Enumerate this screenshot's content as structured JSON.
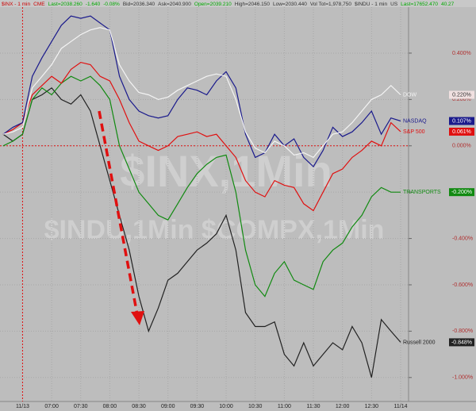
{
  "chart_data": {
    "type": "line",
    "header_items": [
      "$INX - 1 min",
      "CME",
      "Last=2038.260",
      "-1.640",
      "-0.08%",
      "Bid=2036.340",
      "Ask=2040.900",
      "Open=2039.210",
      "High=2046.150",
      "Low=2030.440",
      "Vol Tot=1,978,750",
      "$INDU - 1 min",
      "US",
      "Last=17652.470",
      "40.27"
    ],
    "watermarks": [
      "$INX,1Min",
      "$INDU,1Min  $COMPX,1Min"
    ],
    "categories": [
      null,
      null,
      "11/13",
      null,
      null,
      "07:00",
      null,
      null,
      "07:30",
      null,
      null,
      "08:00",
      null,
      null,
      "08:30",
      null,
      null,
      "09:00",
      null,
      null,
      "09:30",
      null,
      null,
      "10:00",
      null,
      null,
      "10:30",
      null,
      null,
      "11:00",
      null,
      null,
      "11:30",
      null,
      null,
      "12:00",
      null,
      null,
      "12:30",
      null,
      null,
      "11/14"
    ],
    "ylim": [
      -1.1,
      0.595
    ],
    "yticks": [
      {
        "value": 0.4,
        "label": "0.400%"
      },
      {
        "value": 0.2,
        "label": "0.200%"
      },
      {
        "value": 0,
        "label": "0.000%"
      },
      {
        "value": -0.2,
        "label": "-0.200%"
      },
      {
        "value": -0.4,
        "label": "-0.400%"
      },
      {
        "value": -0.6,
        "label": "-0.600%"
      },
      {
        "value": -0.8,
        "label": "-0.800%"
      },
      {
        "value": -1.0,
        "label": "-1.000%"
      }
    ],
    "grid": true,
    "series": [
      {
        "name": "DOW",
        "color": "#f4f4f4",
        "values": [
          0.05,
          0.06,
          0.08,
          0.25,
          0.3,
          0.35,
          0.42,
          0.45,
          0.48,
          0.5,
          0.51,
          0.5,
          0.35,
          0.28,
          0.23,
          0.22,
          0.2,
          0.21,
          0.24,
          0.26,
          0.28,
          0.3,
          0.31,
          0.3,
          0.2,
          0.06,
          -0.01,
          -0.03,
          0.02,
          0.0,
          -0.04,
          -0.03,
          -0.05,
          0.0,
          0.05,
          0.06,
          0.1,
          0.15,
          0.2,
          0.22,
          0.26,
          0.22
        ],
        "value_labels": [
          null,
          null,
          null,
          null,
          null,
          null,
          null,
          null,
          null,
          null,
          null,
          null,
          null,
          null,
          null,
          null,
          null,
          null,
          null,
          null,
          null,
          null,
          null,
          null,
          null,
          null,
          null,
          null,
          null,
          null,
          null,
          null,
          null,
          null,
          null,
          null,
          null,
          null,
          null,
          null,
          null,
          "0.220%"
        ]
      },
      {
        "name": "NASDAQ",
        "color": "#1a1a8c",
        "values": [
          0.05,
          0.08,
          0.1,
          0.3,
          0.38,
          0.45,
          0.52,
          0.56,
          0.55,
          0.56,
          0.53,
          0.5,
          0.3,
          0.2,
          0.15,
          0.13,
          0.12,
          0.13,
          0.2,
          0.25,
          0.24,
          0.22,
          0.28,
          0.32,
          0.25,
          0.05,
          -0.05,
          -0.03,
          0.05,
          0.0,
          0.03,
          -0.05,
          -0.09,
          -0.02,
          0.08,
          0.04,
          0.06,
          0.1,
          0.15,
          0.05,
          0.12,
          0.107
        ],
        "value_labels": [
          null,
          null,
          null,
          null,
          null,
          null,
          null,
          null,
          null,
          null,
          null,
          null,
          null,
          null,
          null,
          null,
          null,
          null,
          null,
          null,
          null,
          null,
          null,
          null,
          null,
          null,
          null,
          null,
          null,
          null,
          null,
          null,
          null,
          null,
          null,
          null,
          null,
          null,
          null,
          null,
          null,
          "0.107%"
        ]
      },
      {
        "name": "S&P 500",
        "color": "#e01010",
        "values": [
          0.05,
          0.07,
          0.1,
          0.22,
          0.26,
          0.3,
          0.27,
          0.33,
          0.36,
          0.35,
          0.3,
          0.28,
          0.2,
          0.1,
          0.02,
          0.0,
          -0.02,
          0.0,
          0.04,
          0.05,
          0.06,
          0.04,
          0.05,
          0.0,
          -0.05,
          -0.15,
          -0.2,
          -0.22,
          -0.15,
          -0.17,
          -0.18,
          -0.25,
          -0.28,
          -0.2,
          -0.12,
          -0.1,
          -0.05,
          -0.02,
          0.02,
          0.0,
          0.1,
          0.061
        ],
        "value_labels": [
          null,
          null,
          null,
          null,
          null,
          null,
          null,
          null,
          null,
          null,
          null,
          null,
          null,
          null,
          null,
          null,
          null,
          null,
          null,
          null,
          null,
          null,
          null,
          null,
          null,
          null,
          null,
          null,
          null,
          null,
          null,
          null,
          null,
          null,
          null,
          null,
          null,
          null,
          null,
          null,
          null,
          "0.061%"
        ]
      },
      {
        "name": "TRANSPORTS",
        "color": "#118a11",
        "values": [
          0.0,
          0.02,
          0.05,
          0.2,
          0.25,
          0.22,
          0.27,
          0.3,
          0.28,
          0.3,
          0.26,
          0.2,
          0.0,
          -0.1,
          -0.2,
          -0.25,
          -0.3,
          -0.32,
          -0.25,
          -0.18,
          -0.12,
          -0.08,
          -0.05,
          -0.04,
          -0.2,
          -0.45,
          -0.6,
          -0.65,
          -0.55,
          -0.5,
          -0.58,
          -0.6,
          -0.62,
          -0.5,
          -0.45,
          -0.42,
          -0.35,
          -0.3,
          -0.22,
          -0.18,
          -0.2,
          -0.2
        ],
        "value_labels": [
          null,
          null,
          null,
          null,
          null,
          null,
          null,
          null,
          null,
          null,
          null,
          null,
          null,
          null,
          null,
          null,
          null,
          null,
          null,
          null,
          null,
          null,
          null,
          null,
          null,
          null,
          null,
          null,
          null,
          null,
          null,
          null,
          null,
          null,
          null,
          null,
          null,
          null,
          null,
          null,
          null,
          "-0.200%"
        ]
      },
      {
        "name": "Russell 2000",
        "color": "#222222",
        "values": [
          0.05,
          0.02,
          0.05,
          0.2,
          0.22,
          0.25,
          0.2,
          0.18,
          0.22,
          0.15,
          0.0,
          -0.15,
          -0.3,
          -0.45,
          -0.65,
          -0.8,
          -0.7,
          -0.58,
          -0.55,
          -0.5,
          -0.45,
          -0.42,
          -0.38,
          -0.3,
          -0.45,
          -0.72,
          -0.78,
          -0.78,
          -0.76,
          -0.9,
          -0.95,
          -0.85,
          -0.95,
          -0.9,
          -0.85,
          -0.88,
          -0.78,
          -0.85,
          -1.0,
          -0.75,
          -0.8,
          -0.848
        ],
        "value_labels": [
          null,
          null,
          null,
          null,
          null,
          null,
          null,
          null,
          null,
          null,
          null,
          null,
          null,
          null,
          null,
          null,
          null,
          null,
          null,
          null,
          null,
          null,
          null,
          null,
          null,
          null,
          null,
          null,
          null,
          null,
          null,
          null,
          null,
          null,
          null,
          null,
          null,
          null,
          null,
          null,
          null,
          "-0.848%"
        ]
      }
    ]
  }
}
